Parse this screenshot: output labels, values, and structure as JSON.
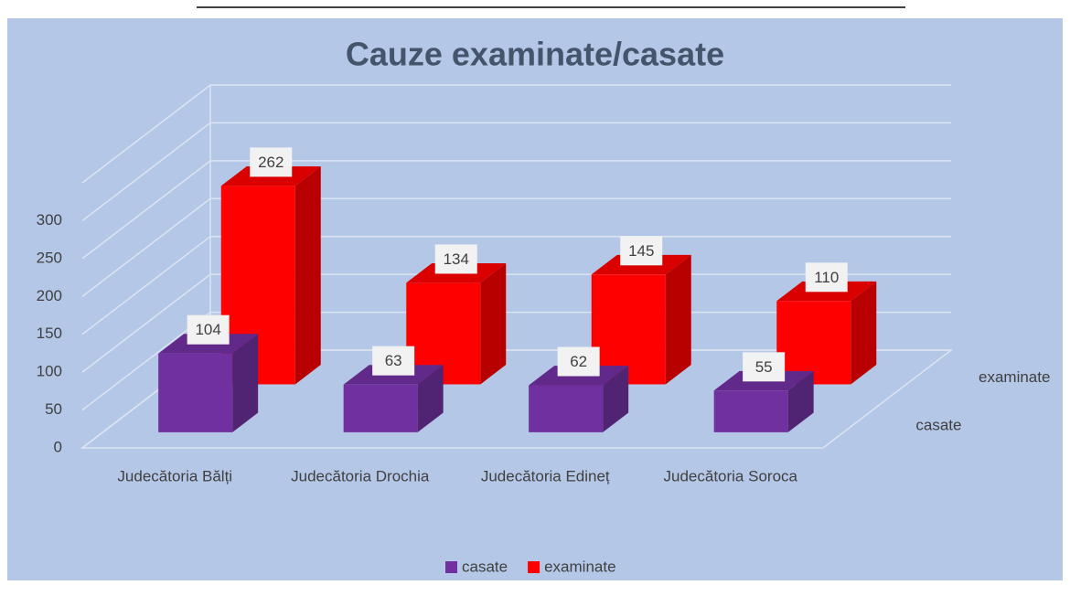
{
  "chart_data": {
    "type": "bar3d",
    "title": "Cauze examinate/casate",
    "categories": [
      "Judecătoria Bălți",
      "Judecătoria Drochia",
      "Judecătoria Edineț",
      "Judecătoria Soroca"
    ],
    "series": [
      {
        "name": "casate",
        "color": "#7030a0",
        "values": [
          104,
          63,
          62,
          55
        ]
      },
      {
        "name": "examinate",
        "color": "#ff0000",
        "values": [
          262,
          134,
          145,
          110
        ]
      }
    ],
    "ylim": [
      0,
      350
    ],
    "yticks": [
      0,
      50,
      100,
      150,
      200,
      250,
      300
    ],
    "grid": true,
    "legend": "bottom"
  }
}
